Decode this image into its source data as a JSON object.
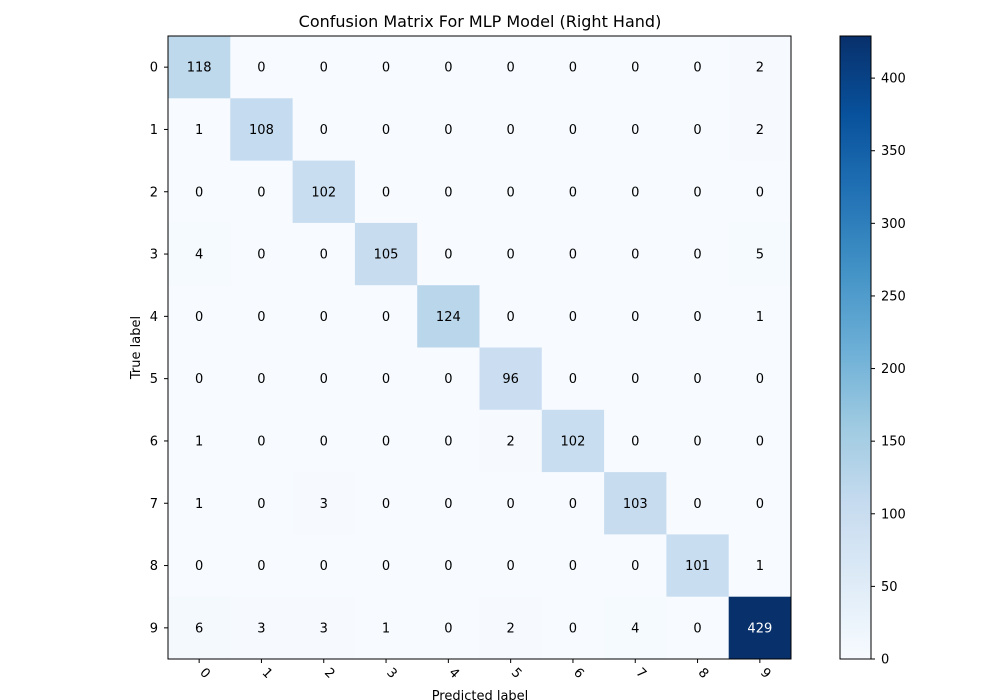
{
  "chart_data": {
    "type": "heatmap",
    "title": "Confusion Matrix For MLP Model (Right Hand)",
    "xlabel": "Predicted label",
    "ylabel": "True label",
    "x_categories": [
      "0",
      "1",
      "2",
      "3",
      "4",
      "5",
      "6",
      "7",
      "8",
      "9"
    ],
    "y_categories": [
      "0",
      "1",
      "2",
      "3",
      "4",
      "5",
      "6",
      "7",
      "8",
      "9"
    ],
    "values": [
      [
        118,
        0,
        0,
        0,
        0,
        0,
        0,
        0,
        0,
        2
      ],
      [
        1,
        108,
        0,
        0,
        0,
        0,
        0,
        0,
        0,
        2
      ],
      [
        0,
        0,
        102,
        0,
        0,
        0,
        0,
        0,
        0,
        0
      ],
      [
        4,
        0,
        0,
        105,
        0,
        0,
        0,
        0,
        0,
        5
      ],
      [
        0,
        0,
        0,
        0,
        124,
        0,
        0,
        0,
        0,
        1
      ],
      [
        0,
        0,
        0,
        0,
        0,
        96,
        0,
        0,
        0,
        0
      ],
      [
        1,
        0,
        0,
        0,
        0,
        2,
        102,
        0,
        0,
        0
      ],
      [
        1,
        0,
        3,
        0,
        0,
        0,
        0,
        103,
        0,
        0
      ],
      [
        0,
        0,
        0,
        0,
        0,
        0,
        0,
        0,
        101,
        1
      ],
      [
        6,
        3,
        3,
        1,
        0,
        2,
        0,
        4,
        0,
        429
      ]
    ],
    "colormap": "Blues",
    "colorbar": {
      "range": [
        0,
        429
      ],
      "ticks": [
        0,
        50,
        100,
        150,
        200,
        250,
        300,
        350,
        400
      ]
    },
    "x_tick_rotation_deg": 45
  }
}
